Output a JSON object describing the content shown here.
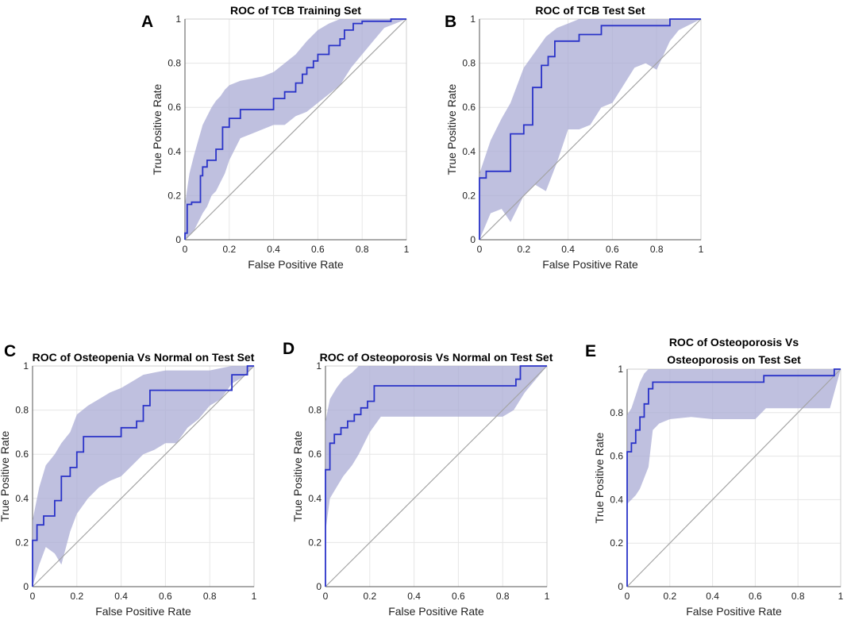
{
  "chart_data": [
    {
      "letter": "A",
      "type": "line",
      "title": [
        "ROC of TCB Training Set"
      ],
      "xlabel": "False Positive Rate",
      "ylabel": "True Positive Rate",
      "xlim": [
        0,
        1
      ],
      "ylim": [
        0,
        1
      ],
      "grid": true,
      "xticks": [
        "0",
        "0.2",
        "0.4",
        "0.6",
        "0.8",
        "1"
      ],
      "yticks": [
        "0",
        "0.2",
        "0.4",
        "0.6",
        "0.8",
        "1"
      ],
      "series": [
        {
          "name": "ROC curve",
          "x": [
            0,
            0,
            0.01,
            0.01,
            0.03,
            0.03,
            0.07,
            0.07,
            0.08,
            0.08,
            0.1,
            0.1,
            0.14,
            0.14,
            0.17,
            0.17,
            0.2,
            0.2,
            0.25,
            0.25,
            0.4,
            0.4,
            0.45,
            0.45,
            0.5,
            0.5,
            0.53,
            0.53,
            0.55,
            0.55,
            0.58,
            0.58,
            0.6,
            0.6,
            0.65,
            0.65,
            0.7,
            0.7,
            0.72,
            0.72,
            0.76,
            0.76,
            0.8,
            0.8,
            0.93,
            0.93,
            1
          ],
          "y": [
            0,
            0.03,
            0.03,
            0.16,
            0.16,
            0.17,
            0.17,
            0.29,
            0.29,
            0.33,
            0.33,
            0.36,
            0.36,
            0.41,
            0.41,
            0.51,
            0.51,
            0.55,
            0.55,
            0.59,
            0.59,
            0.64,
            0.64,
            0.67,
            0.67,
            0.71,
            0.71,
            0.75,
            0.75,
            0.78,
            0.78,
            0.81,
            0.81,
            0.84,
            0.84,
            0.88,
            0.88,
            0.91,
            0.91,
            0.95,
            0.95,
            0.98,
            0.98,
            0.99,
            0.99,
            1,
            1
          ]
        },
        {
          "name": "Confidence band",
          "x": [
            0,
            0.02,
            0.04,
            0.06,
            0.08,
            0.1,
            0.12,
            0.14,
            0.16,
            0.18,
            0.2,
            0.25,
            0.3,
            0.35,
            0.4,
            0.45,
            0.5,
            0.55,
            0.6,
            0.65,
            0.7,
            0.75,
            0.8,
            0.85,
            0.9,
            0.95,
            1
          ],
          "upper": [
            0.16,
            0.3,
            0.38,
            0.45,
            0.52,
            0.56,
            0.6,
            0.63,
            0.65,
            0.68,
            0.7,
            0.72,
            0.73,
            0.74,
            0.76,
            0.8,
            0.84,
            0.9,
            0.95,
            0.98,
            1,
            1,
            1,
            1,
            1,
            1,
            1
          ],
          "lower": [
            0,
            0.02,
            0.04,
            0.08,
            0.12,
            0.15,
            0.2,
            0.22,
            0.26,
            0.3,
            0.36,
            0.46,
            0.48,
            0.5,
            0.52,
            0.52,
            0.56,
            0.58,
            0.62,
            0.66,
            0.7,
            0.78,
            0.84,
            0.9,
            0.96,
            0.98,
            1
          ]
        },
        {
          "name": "Chance line",
          "x": [
            0,
            1
          ],
          "y": [
            0,
            1
          ]
        }
      ]
    },
    {
      "letter": "B",
      "type": "line",
      "title": [
        "ROC of TCB Test Set"
      ],
      "xlabel": "False Positive Rate",
      "ylabel": "True Positive Rate",
      "xlim": [
        0,
        1
      ],
      "ylim": [
        0,
        1
      ],
      "grid": true,
      "xticks": [
        "0",
        "0.2",
        "0.4",
        "0.6",
        "0.8",
        "1"
      ],
      "yticks": [
        "0",
        "0.2",
        "0.4",
        "0.6",
        "0.8",
        "1"
      ],
      "series": [
        {
          "name": "ROC curve",
          "x": [
            0,
            0,
            0.03,
            0.03,
            0.14,
            0.14,
            0.2,
            0.2,
            0.24,
            0.24,
            0.28,
            0.28,
            0.31,
            0.31,
            0.34,
            0.34,
            0.38,
            0.38,
            0.45,
            0.45,
            0.55,
            0.55,
            0.65,
            0.65,
            0.86,
            0.86,
            1
          ],
          "y": [
            0,
            0.28,
            0.28,
            0.31,
            0.31,
            0.48,
            0.48,
            0.52,
            0.52,
            0.69,
            0.69,
            0.79,
            0.79,
            0.83,
            0.83,
            0.9,
            0.9,
            0.9,
            0.9,
            0.93,
            0.93,
            0.97,
            0.97,
            0.97,
            0.97,
            1,
            1
          ]
        },
        {
          "name": "Confidence band",
          "x": [
            0,
            0.05,
            0.1,
            0.14,
            0.2,
            0.25,
            0.3,
            0.35,
            0.4,
            0.45,
            0.5,
            0.55,
            0.6,
            0.65,
            0.7,
            0.75,
            0.8,
            0.86,
            0.9,
            1
          ],
          "upper": [
            0.3,
            0.45,
            0.55,
            0.62,
            0.78,
            0.85,
            0.92,
            0.96,
            0.98,
            1,
            1,
            1,
            1,
            1,
            1,
            1,
            1,
            1,
            1,
            1
          ],
          "lower": [
            0,
            0.12,
            0.14,
            0.08,
            0.2,
            0.25,
            0.22,
            0.35,
            0.5,
            0.5,
            0.52,
            0.6,
            0.62,
            0.7,
            0.78,
            0.8,
            0.77,
            0.9,
            0.95,
            1
          ]
        },
        {
          "name": "Chance line",
          "x": [
            0,
            1
          ],
          "y": [
            0,
            1
          ]
        }
      ]
    },
    {
      "letter": "C",
      "type": "line",
      "title": [
        "ROC of Osteopenia Vs Normal on Test Set"
      ],
      "xlabel": "False Positive Rate",
      "ylabel": "True Positive Rate",
      "xlim": [
        0,
        1
      ],
      "ylim": [
        0,
        1
      ],
      "grid": true,
      "xticks": [
        "0",
        "0.2",
        "0.4",
        "0.6",
        "0.8",
        "1"
      ],
      "yticks": [
        "0",
        "0.2",
        "0.4",
        "0.6",
        "0.8",
        "1"
      ],
      "series": [
        {
          "name": "ROC curve",
          "x": [
            0,
            0,
            0.02,
            0.02,
            0.05,
            0.05,
            0.1,
            0.1,
            0.13,
            0.13,
            0.17,
            0.17,
            0.2,
            0.2,
            0.23,
            0.23,
            0.4,
            0.4,
            0.47,
            0.47,
            0.5,
            0.5,
            0.53,
            0.53,
            0.9,
            0.9,
            0.97,
            0.97,
            1
          ],
          "y": [
            0,
            0.21,
            0.21,
            0.28,
            0.28,
            0.32,
            0.32,
            0.39,
            0.39,
            0.5,
            0.5,
            0.54,
            0.54,
            0.61,
            0.61,
            0.68,
            0.68,
            0.72,
            0.72,
            0.75,
            0.75,
            0.82,
            0.82,
            0.89,
            0.89,
            0.96,
            0.96,
            1,
            1
          ]
        },
        {
          "name": "Confidence band",
          "x": [
            0,
            0.03,
            0.06,
            0.1,
            0.13,
            0.17,
            0.2,
            0.25,
            0.3,
            0.35,
            0.4,
            0.45,
            0.5,
            0.55,
            0.6,
            0.65,
            0.7,
            0.75,
            0.8,
            0.85,
            0.9,
            0.95,
            1
          ],
          "upper": [
            0.3,
            0.45,
            0.55,
            0.6,
            0.65,
            0.7,
            0.78,
            0.82,
            0.85,
            0.88,
            0.9,
            0.93,
            0.96,
            0.97,
            0.98,
            0.98,
            0.98,
            0.98,
            0.98,
            0.99,
            1,
            1,
            1
          ],
          "lower": [
            0,
            0.1,
            0.18,
            0.15,
            0.1,
            0.25,
            0.33,
            0.4,
            0.45,
            0.48,
            0.5,
            0.55,
            0.6,
            0.62,
            0.65,
            0.65,
            0.72,
            0.76,
            0.82,
            0.85,
            0.92,
            0.95,
            1
          ]
        },
        {
          "name": "Chance line",
          "x": [
            0,
            1
          ],
          "y": [
            0,
            1
          ]
        }
      ]
    },
    {
      "letter": "D",
      "type": "line",
      "title": [
        "ROC of Osteoporosis Vs Normal on Test Set"
      ],
      "xlabel": "False Positive Rate",
      "ylabel": "True Positive Rate",
      "xlim": [
        0,
        1
      ],
      "ylim": [
        0,
        1
      ],
      "grid": true,
      "xticks": [
        "0",
        "0.2",
        "0.4",
        "0.6",
        "0.8",
        "1"
      ],
      "yticks": [
        "0",
        "0.2",
        "0.4",
        "0.6",
        "0.8",
        "1"
      ],
      "series": [
        {
          "name": "ROC curve",
          "x": [
            0,
            0,
            0.02,
            0.02,
            0.04,
            0.04,
            0.07,
            0.07,
            0.1,
            0.1,
            0.13,
            0.13,
            0.16,
            0.16,
            0.19,
            0.19,
            0.22,
            0.22,
            0.86,
            0.86,
            0.88,
            0.88,
            1
          ],
          "y": [
            0,
            0.53,
            0.53,
            0.65,
            0.65,
            0.69,
            0.69,
            0.72,
            0.72,
            0.75,
            0.75,
            0.78,
            0.78,
            0.81,
            0.81,
            0.84,
            0.84,
            0.91,
            0.91,
            0.94,
            0.94,
            1,
            1
          ]
        },
        {
          "name": "Confidence band",
          "x": [
            0,
            0.02,
            0.05,
            0.08,
            0.12,
            0.15,
            0.2,
            0.25,
            0.3,
            0.4,
            0.5,
            0.6,
            0.7,
            0.8,
            0.85,
            0.9,
            0.95,
            1
          ],
          "upper": [
            0.75,
            0.85,
            0.9,
            0.94,
            0.97,
            1,
            1,
            1,
            1,
            1,
            1,
            1,
            1,
            1,
            1,
            1,
            1,
            1
          ],
          "lower": [
            0.25,
            0.4,
            0.45,
            0.5,
            0.55,
            0.6,
            0.7,
            0.77,
            0.77,
            0.77,
            0.77,
            0.77,
            0.77,
            0.77,
            0.8,
            0.88,
            0.94,
            1
          ]
        },
        {
          "name": "Chance line",
          "x": [
            0,
            1
          ],
          "y": [
            0,
            1
          ]
        }
      ]
    },
    {
      "letter": "E",
      "type": "line",
      "title": [
        "ROC of Osteoporosis Vs",
        "Osteoporosis on Test Set"
      ],
      "xlabel": "False Positive Rate",
      "ylabel": "True Positive Rate",
      "xlim": [
        0,
        1
      ],
      "ylim": [
        0,
        1
      ],
      "grid": true,
      "xticks": [
        "0",
        "0.2",
        "0.4",
        "0.6",
        "0.8",
        "1"
      ],
      "yticks": [
        "0",
        "0.2",
        "0.4",
        "0.6",
        "0.8",
        "1"
      ],
      "series": [
        {
          "name": "ROC curve",
          "x": [
            0,
            0,
            0.02,
            0.02,
            0.04,
            0.04,
            0.06,
            0.06,
            0.08,
            0.08,
            0.1,
            0.1,
            0.12,
            0.12,
            0.64,
            0.64,
            0.97,
            0.97,
            1
          ],
          "y": [
            0,
            0.62,
            0.62,
            0.66,
            0.66,
            0.72,
            0.72,
            0.78,
            0.78,
            0.84,
            0.84,
            0.91,
            0.91,
            0.94,
            0.94,
            0.97,
            0.97,
            1,
            1
          ]
        },
        {
          "name": "Confidence band",
          "x": [
            0,
            0.02,
            0.04,
            0.06,
            0.08,
            0.1,
            0.12,
            0.15,
            0.2,
            0.3,
            0.4,
            0.5,
            0.6,
            0.65,
            0.7,
            0.8,
            0.9,
            0.95,
            1
          ],
          "upper": [
            0.79,
            0.82,
            0.88,
            0.94,
            0.98,
            1,
            1,
            1,
            1,
            1,
            1,
            1,
            1,
            1,
            1,
            1,
            1,
            1,
            1
          ],
          "lower": [
            0.38,
            0.4,
            0.42,
            0.45,
            0.5,
            0.55,
            0.72,
            0.75,
            0.77,
            0.78,
            0.77,
            0.77,
            0.77,
            0.82,
            0.82,
            0.82,
            0.82,
            0.82,
            1
          ]
        },
        {
          "name": "Chance line",
          "x": [
            0,
            1
          ],
          "y": [
            0,
            1
          ]
        }
      ]
    }
  ]
}
